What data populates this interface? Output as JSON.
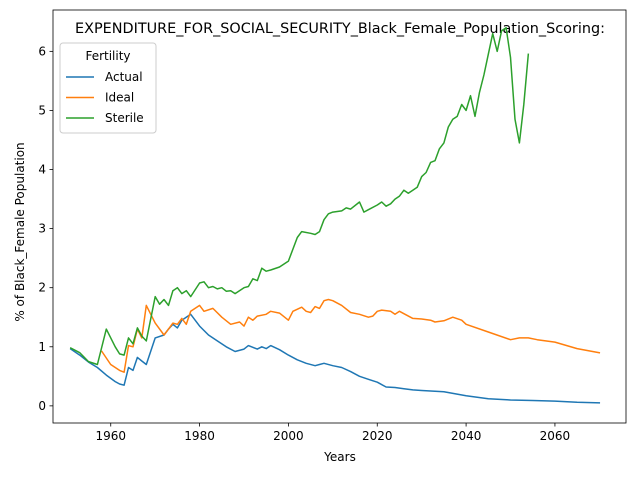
{
  "chart_data": {
    "type": "line",
    "title": "EXPENDITURE_FOR_SOCIAL_SECURITY_Black_Female_Population_Scoring:",
    "xlabel": "Years",
    "ylabel": "% of Black_Female Population",
    "xlim": [
      1947,
      2076
    ],
    "ylim": [
      -0.29,
      6.7
    ],
    "xticks": [
      1960,
      1980,
      2000,
      2020,
      2040,
      2060
    ],
    "yticks": [
      0,
      1,
      2,
      3,
      4,
      5,
      6
    ],
    "grid": false,
    "legend": {
      "title": "Fertility",
      "position": "top-left"
    },
    "series": [
      {
        "name": "Actual",
        "color": "#1f77b4",
        "x": [
          1951,
          1953,
          1955,
          1957,
          1959,
          1961,
          1962,
          1963,
          1964,
          1965,
          1966,
          1967,
          1968,
          1970,
          1972,
          1973,
          1974,
          1975,
          1976,
          1978,
          1980,
          1982,
          1984,
          1986,
          1988,
          1990,
          1991,
          1993,
          1994,
          1995,
          1996,
          1998,
          2000,
          2002,
          2004,
          2006,
          2007,
          2008,
          2010,
          2012,
          2014,
          2016,
          2018,
          2020,
          2022,
          2024,
          2026,
          2028,
          2030,
          2035,
          2040,
          2045,
          2050,
          2055,
          2060,
          2065,
          2070
        ],
        "y": [
          0.96,
          0.86,
          0.74,
          0.65,
          0.52,
          0.41,
          0.37,
          0.35,
          0.65,
          0.6,
          0.82,
          0.76,
          0.7,
          1.15,
          1.2,
          1.3,
          1.38,
          1.32,
          1.45,
          1.55,
          1.35,
          1.2,
          1.1,
          1.0,
          0.92,
          0.96,
          1.02,
          0.96,
          1.0,
          0.97,
          1.02,
          0.95,
          0.86,
          0.78,
          0.72,
          0.68,
          0.7,
          0.72,
          0.68,
          0.65,
          0.58,
          0.5,
          0.45,
          0.4,
          0.32,
          0.31,
          0.29,
          0.27,
          0.26,
          0.24,
          0.17,
          0.12,
          0.1,
          0.09,
          0.08,
          0.06,
          0.05
        ]
      },
      {
        "name": "Ideal",
        "color": "#ff7f0e",
        "x": [
          1958,
          1960,
          1962,
          1963,
          1964,
          1965,
          1966,
          1967,
          1968,
          1970,
          1972,
          1973,
          1974,
          1975,
          1976,
          1977,
          1978,
          1980,
          1981,
          1983,
          1985,
          1987,
          1989,
          1990,
          1991,
          1992,
          1993,
          1995,
          1996,
          1998,
          2000,
          2001,
          2003,
          2004,
          2005,
          2006,
          2007,
          2008,
          2009,
          2010,
          2012,
          2014,
          2016,
          2018,
          2019,
          2020,
          2021,
          2023,
          2024,
          2025,
          2026,
          2028,
          2030,
          2032,
          2033,
          2035,
          2037,
          2039,
          2040,
          2045,
          2050,
          2052,
          2054,
          2056,
          2060,
          2065,
          2070
        ],
        "y": [
          0.92,
          0.7,
          0.6,
          0.57,
          1.02,
          1.0,
          1.3,
          1.15,
          1.7,
          1.4,
          1.2,
          1.3,
          1.4,
          1.38,
          1.48,
          1.38,
          1.6,
          1.7,
          1.6,
          1.65,
          1.5,
          1.38,
          1.42,
          1.35,
          1.5,
          1.45,
          1.52,
          1.55,
          1.6,
          1.57,
          1.45,
          1.6,
          1.67,
          1.6,
          1.58,
          1.68,
          1.65,
          1.78,
          1.8,
          1.78,
          1.7,
          1.58,
          1.55,
          1.5,
          1.52,
          1.6,
          1.62,
          1.6,
          1.55,
          1.6,
          1.56,
          1.48,
          1.47,
          1.45,
          1.42,
          1.44,
          1.5,
          1.45,
          1.38,
          1.25,
          1.12,
          1.15,
          1.15,
          1.12,
          1.08,
          0.97,
          0.9
        ]
      },
      {
        "name": "Sterile",
        "color": "#2ca02c",
        "x": [
          1951,
          1953,
          1955,
          1957,
          1959,
          1961,
          1962,
          1963,
          1964,
          1965,
          1966,
          1967,
          1968,
          1970,
          1971,
          1972,
          1973,
          1974,
          1975,
          1976,
          1977,
          1978,
          1980,
          1981,
          1982,
          1983,
          1984,
          1985,
          1986,
          1987,
          1988,
          1990,
          1991,
          1992,
          1993,
          1994,
          1995,
          1996,
          1998,
          2000,
          2002,
          2003,
          2005,
          2006,
          2007,
          2008,
          2009,
          2010,
          2012,
          2013,
          2014,
          2016,
          2017,
          2018,
          2020,
          2021,
          2022,
          2023,
          2024,
          2025,
          2026,
          2027,
          2028,
          2029,
          2030,
          2031,
          2032,
          2033,
          2034,
          2035,
          2036,
          2037,
          2038,
          2039,
          2040,
          2041,
          2042,
          2043,
          2044,
          2045,
          2046,
          2047,
          2048,
          2049,
          2050,
          2051,
          2052,
          2053,
          2054
        ],
        "y": [
          0.98,
          0.9,
          0.75,
          0.7,
          1.3,
          1.0,
          0.88,
          0.86,
          1.15,
          1.05,
          1.32,
          1.18,
          1.1,
          1.85,
          1.72,
          1.8,
          1.7,
          1.95,
          2.0,
          1.9,
          1.95,
          1.85,
          2.08,
          2.1,
          2.0,
          2.02,
          1.98,
          2.0,
          1.94,
          1.95,
          1.9,
          2.0,
          2.02,
          2.15,
          2.12,
          2.33,
          2.28,
          2.3,
          2.35,
          2.45,
          2.85,
          2.95,
          2.92,
          2.9,
          2.95,
          3.15,
          3.25,
          3.28,
          3.3,
          3.35,
          3.33,
          3.45,
          3.28,
          3.32,
          3.4,
          3.45,
          3.38,
          3.42,
          3.5,
          3.55,
          3.65,
          3.6,
          3.65,
          3.7,
          3.88,
          3.95,
          4.12,
          4.15,
          4.35,
          4.45,
          4.72,
          4.85,
          4.9,
          5.1,
          5.0,
          5.25,
          4.9,
          5.3,
          5.6,
          5.95,
          6.3,
          6.0,
          6.35,
          6.4,
          5.9,
          4.85,
          4.45,
          5.1,
          5.95
        ]
      }
    ]
  }
}
